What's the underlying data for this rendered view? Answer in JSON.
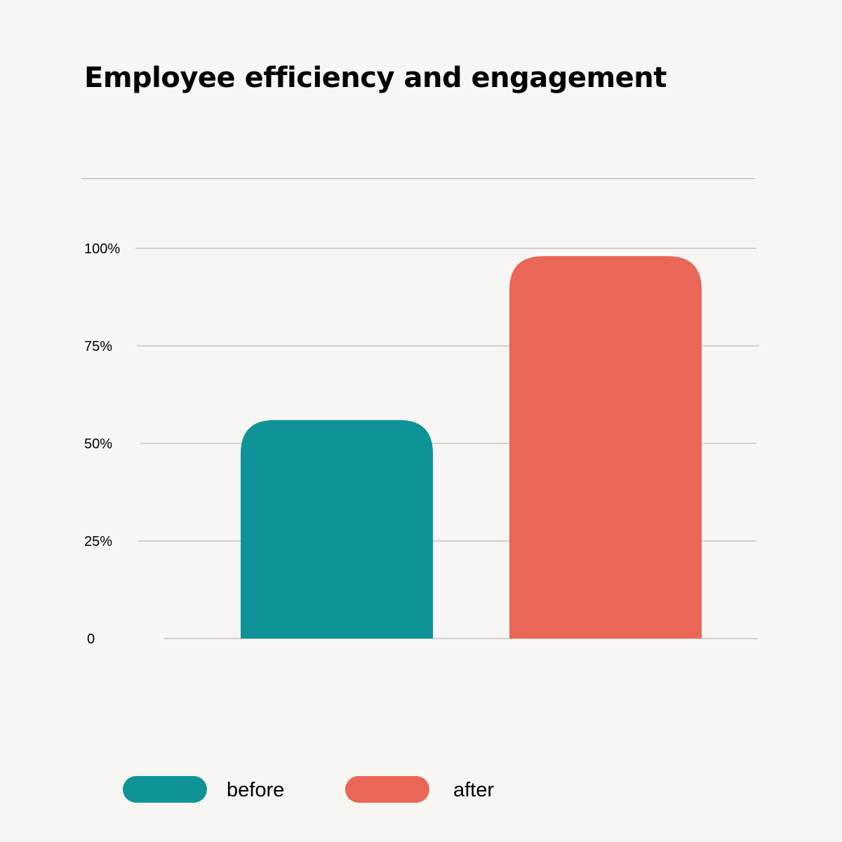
{
  "title": "Employee efficiency and engagement",
  "chart_data": {
    "type": "bar",
    "categories": [
      "before",
      "after"
    ],
    "series": [
      {
        "name": "before",
        "values": [
          56,
          null
        ],
        "color": "#0e9496"
      },
      {
        "name": "after",
        "values": [
          null,
          98
        ],
        "color": "#ea6656"
      }
    ],
    "values": [
      56,
      98
    ],
    "ylim": [
      0,
      100
    ],
    "yticks": [
      0,
      25,
      50,
      75,
      100
    ],
    "ytick_labels": [
      "0",
      "25%",
      "50%",
      "75%",
      "100%"
    ],
    "grid": true,
    "legend": {
      "position": "bottom",
      "items": [
        {
          "label": "before",
          "color": "#0e9496"
        },
        {
          "label": "after",
          "color": "#ea6656"
        }
      ]
    }
  },
  "colors": {
    "background": "#f7f6f2",
    "gridline": "#a9a9a9",
    "before": "#0e9496",
    "after": "#ea6656"
  }
}
